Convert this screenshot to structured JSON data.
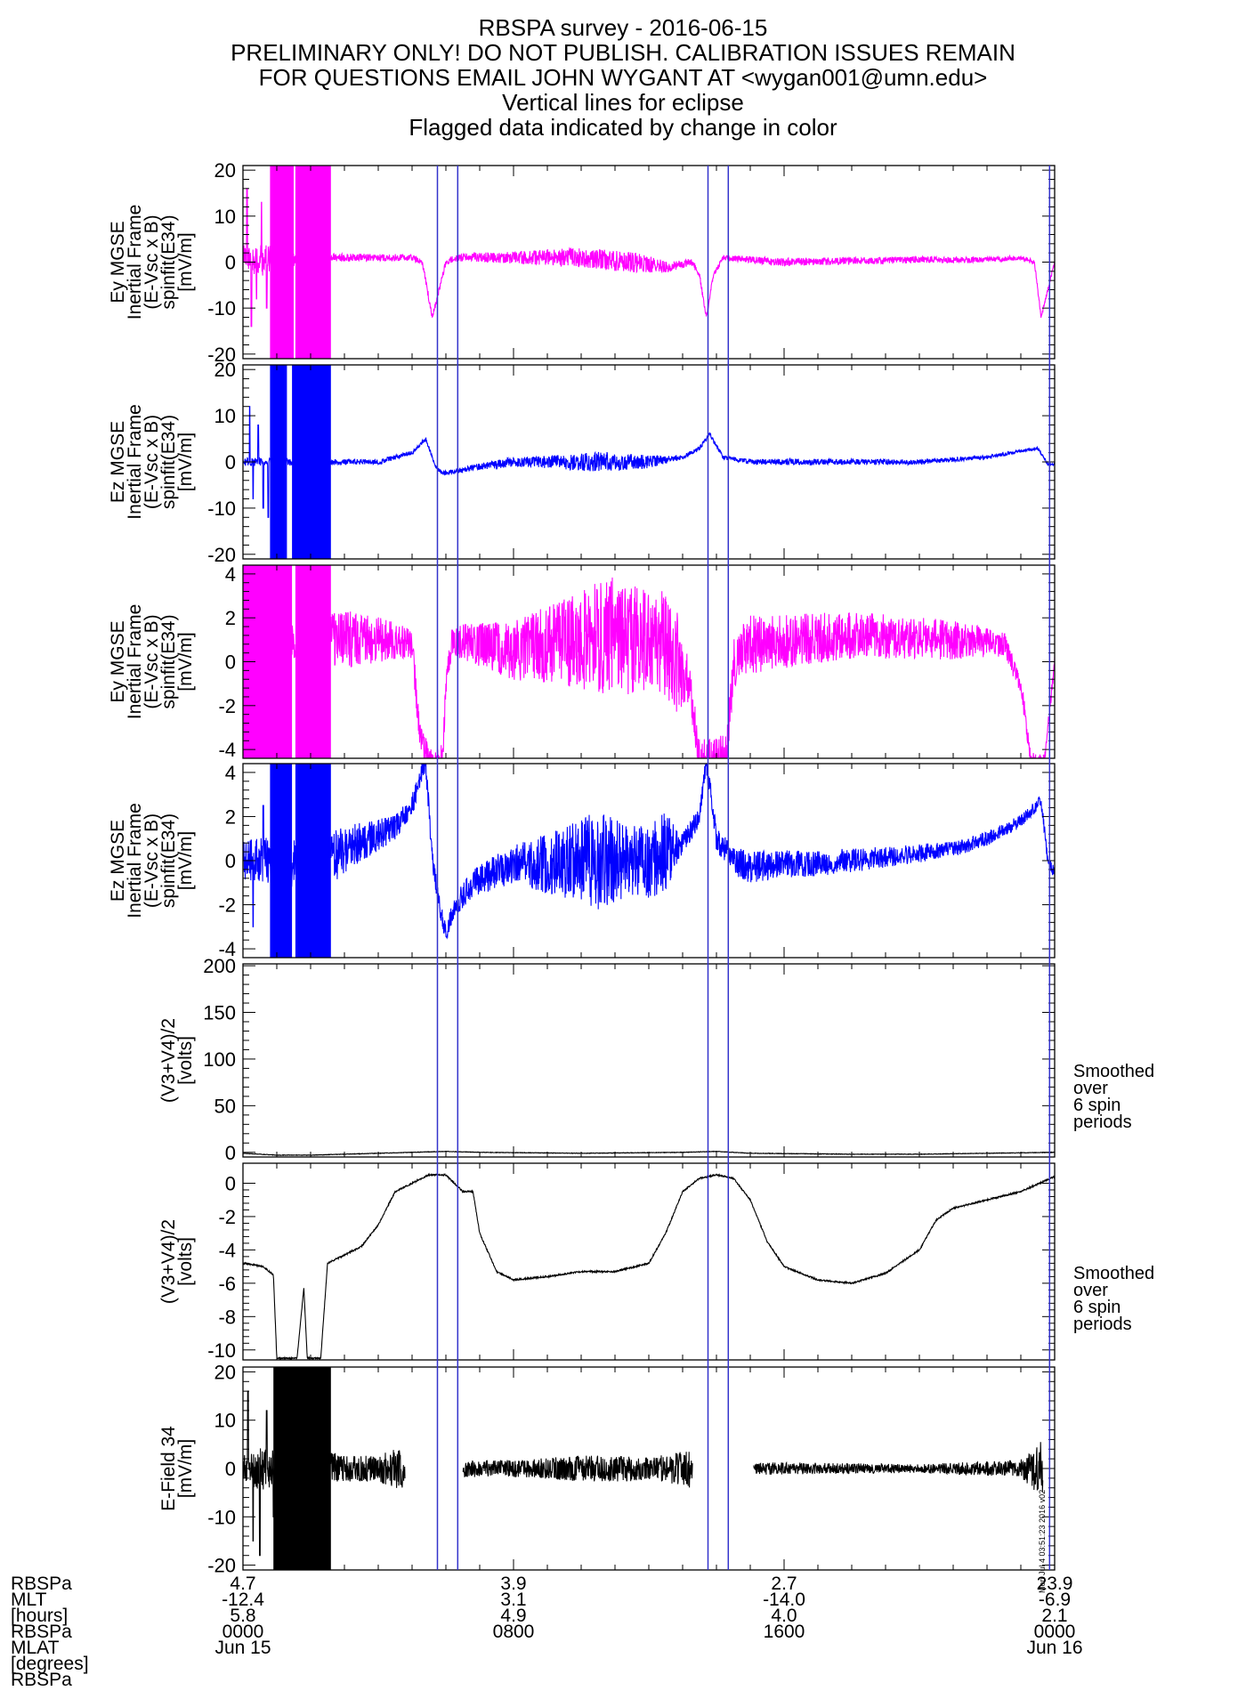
{
  "title_lines": [
    "RBSPA survey - 2016-06-15",
    "PRELIMINARY ONLY! DO NOT PUBLISH. CALIBRATION ISSUES REMAIN",
    "FOR QUESTIONS EMAIL JOHN WYGANT AT <wygan001@umn.edu>",
    "Vertical lines for eclipse",
    "Flagged data indicated by change in color"
  ],
  "colors": {
    "magenta": "#ff00ff",
    "blue": "#0000ff",
    "black": "#000000",
    "eclipse": "#3333cc"
  },
  "time_axis": {
    "start_hours": 0,
    "end_hours": 24,
    "major_ticks_hours": [
      0,
      8,
      16,
      24
    ],
    "minor_step_hours": 1
  },
  "eclipse_lines_hours": [
    5.75,
    6.35,
    13.75,
    14.35,
    23.85
  ],
  "side_labels": {
    "panel5": [
      "Smoothed",
      "over",
      "6 spin",
      "periods"
    ],
    "panel6": [
      "Smoothed",
      "over",
      "6 spin",
      "periods"
    ]
  },
  "stamp": "Mon Jul  4 03:51:23 2016 v02",
  "ephemeris": {
    "row_labels": [
      "RBSPa",
      "MLT",
      "[hours]",
      "RBSPa",
      "MLAT",
      "[degrees]",
      "RBSPa"
    ],
    "columns": [
      {
        "hour": 0,
        "lines": [
          "4.7",
          "-12.4",
          "5.8",
          "0000",
          "Jun 15"
        ]
      },
      {
        "hour": 8,
        "lines": [
          "3.9",
          "3.1",
          "4.9",
          "0800",
          ""
        ]
      },
      {
        "hour": 16,
        "lines": [
          "2.7",
          "-14.0",
          "4.0",
          "1600",
          ""
        ]
      },
      {
        "hour": 24,
        "lines": [
          "23.9",
          "-6.9",
          "2.1",
          "0000",
          "Jun 16"
        ]
      }
    ]
  },
  "chart_data": [
    {
      "type": "line",
      "ylabel_lines": [
        "Ey MGSE",
        "Inertial Frame",
        "(E-Vsc x B)",
        "spinfit(E34)",
        "[mV/m]"
      ],
      "ylim": [
        -21,
        21
      ],
      "yticks": [
        -20,
        -10,
        0,
        10,
        20
      ],
      "color_main": "#ff00ff",
      "flag_color": "#ff00ff",
      "baseline": [
        [
          0,
          1
        ],
        [
          0.3,
          0.5
        ],
        [
          2,
          0.5
        ],
        [
          2.3,
          1
        ],
        [
          5,
          1
        ],
        [
          5.3,
          0
        ],
        [
          5.6,
          -12
        ],
        [
          5.8,
          -6
        ],
        [
          6,
          0
        ],
        [
          6.3,
          1
        ],
        [
          8,
          1
        ],
        [
          10,
          1
        ],
        [
          11.5,
          0
        ],
        [
          12.5,
          -1
        ],
        [
          13.3,
          0
        ],
        [
          13.5,
          -3
        ],
        [
          13.7,
          -12
        ],
        [
          13.9,
          -3
        ],
        [
          14.2,
          1
        ],
        [
          16,
          0
        ],
        [
          20,
          0.5
        ],
        [
          22,
          0.5
        ],
        [
          23,
          1
        ],
        [
          23.4,
          0
        ],
        [
          23.6,
          -12
        ],
        [
          23.8,
          -6
        ],
        [
          24,
          0
        ]
      ],
      "noise": [
        [
          0,
          3
        ],
        [
          0.5,
          4
        ],
        [
          2,
          1
        ],
        [
          5,
          0.8
        ],
        [
          6,
          0.8
        ],
        [
          8,
          1.5
        ],
        [
          10,
          2.5
        ],
        [
          11.5,
          2.5
        ],
        [
          13,
          1
        ],
        [
          14,
          0.6
        ],
        [
          16,
          1
        ],
        [
          20,
          0.8
        ],
        [
          24,
          0.5
        ]
      ],
      "spikes": [
        [
          0.12,
          16
        ],
        [
          0.25,
          -14
        ],
        [
          0.4,
          -8
        ],
        [
          0.55,
          13
        ],
        [
          0.7,
          -10
        ],
        [
          0.85,
          8
        ]
      ],
      "flag_spans": [
        [
          0.8,
          1.5
        ],
        [
          1.55,
          2.6
        ]
      ],
      "flag_clip": true
    },
    {
      "type": "line",
      "ylabel_lines": [
        "Ez MGSE",
        "Inertial Frame",
        "(E-Vsc x B)",
        "spinfit(E34)",
        "[mV/m]"
      ],
      "ylim": [
        -21,
        21
      ],
      "yticks": [
        -20,
        -10,
        0,
        10,
        20
      ],
      "color_main": "#0000ff",
      "flag_color": "#0000ff",
      "baseline": [
        [
          0,
          0
        ],
        [
          2.5,
          0
        ],
        [
          4,
          0
        ],
        [
          5,
          2
        ],
        [
          5.4,
          5
        ],
        [
          5.7,
          -1
        ],
        [
          5.9,
          -2.5
        ],
        [
          7,
          -1
        ],
        [
          8,
          0
        ],
        [
          11,
          0
        ],
        [
          12,
          0
        ],
        [
          13,
          1
        ],
        [
          13.5,
          3
        ],
        [
          13.8,
          6
        ],
        [
          14.2,
          1
        ],
        [
          15,
          0
        ],
        [
          20,
          0
        ],
        [
          22,
          1
        ],
        [
          23.5,
          3
        ],
        [
          23.8,
          -0.5
        ],
        [
          24,
          -0.5
        ]
      ],
      "noise": [
        [
          0,
          1
        ],
        [
          2,
          0.8
        ],
        [
          5,
          0.5
        ],
        [
          6,
          0.5
        ],
        [
          9,
          1.5
        ],
        [
          10.5,
          2.5
        ],
        [
          11.5,
          2
        ],
        [
          13,
          0.5
        ],
        [
          14.5,
          0.5
        ],
        [
          16,
          0.8
        ],
        [
          20,
          0.6
        ],
        [
          24,
          0.3
        ]
      ],
      "spikes": [
        [
          0.2,
          12
        ],
        [
          0.3,
          -8
        ],
        [
          0.45,
          8
        ],
        [
          0.6,
          -10
        ],
        [
          0.75,
          -12
        ],
        [
          0.9,
          6
        ]
      ],
      "flag_spans": [
        [
          0.8,
          1.3
        ],
        [
          1.45,
          2.6
        ]
      ],
      "flag_clip": true
    },
    {
      "type": "line",
      "ylabel_lines": [
        "Ey MGSE",
        "Inertial Frame",
        "(E-Vsc x B)",
        "spinfit(E34)",
        "[mV/m]"
      ],
      "ylim": [
        -4.4,
        4.4
      ],
      "yticks": [
        -4,
        -2,
        0,
        2,
        4
      ],
      "color_main": "#ff00ff",
      "flag_color": "#ff00ff",
      "baseline": [
        [
          0,
          1
        ],
        [
          2.5,
          1
        ],
        [
          4,
          1
        ],
        [
          5,
          0.8
        ],
        [
          5.2,
          -3
        ],
        [
          5.5,
          -4.5
        ],
        [
          5.9,
          -4.5
        ],
        [
          6,
          -1
        ],
        [
          6.2,
          1
        ],
        [
          8,
          0.5
        ],
        [
          10,
          1
        ],
        [
          11,
          1.2
        ],
        [
          12.5,
          0.8
        ],
        [
          13.2,
          -1
        ],
        [
          13.5,
          -4.5
        ],
        [
          14.3,
          -4.5
        ],
        [
          14.5,
          0
        ],
        [
          15,
          0.8
        ],
        [
          18,
          1.2
        ],
        [
          21,
          1
        ],
        [
          22.5,
          0.8
        ],
        [
          23,
          -1
        ],
        [
          23.3,
          -4.5
        ],
        [
          23.7,
          -4.5
        ],
        [
          23.9,
          -1.5
        ],
        [
          24,
          0
        ]
      ],
      "noise": [
        [
          0,
          1.2
        ],
        [
          2,
          1
        ],
        [
          3,
          1.5
        ],
        [
          5,
          0.8
        ],
        [
          6.2,
          0.8
        ],
        [
          8,
          1.5
        ],
        [
          10,
          2.5
        ],
        [
          11,
          3.2
        ],
        [
          12,
          2.5
        ],
        [
          12.8,
          2.8
        ],
        [
          13.2,
          1
        ],
        [
          15,
          1.5
        ],
        [
          18,
          1.2
        ],
        [
          21,
          1
        ],
        [
          23,
          0.5
        ],
        [
          24,
          0.3
        ]
      ],
      "spikes": [
        [
          0.1,
          3
        ],
        [
          0.3,
          -2.5
        ],
        [
          0.5,
          2.8
        ]
      ],
      "flag_spans": [
        [
          0,
          1.45
        ],
        [
          1.55,
          2.6
        ]
      ],
      "flag_clip": true
    },
    {
      "type": "line",
      "ylabel_lines": [
        "Ez MGSE",
        "Inertial Frame",
        "(E-Vsc x B)",
        "spinfit(E34)",
        "[mV/m]"
      ],
      "ylim": [
        -4.4,
        4.4
      ],
      "yticks": [
        -4,
        -2,
        0,
        2,
        4
      ],
      "color_main": "#0000ff",
      "flag_color": "#0000ff",
      "baseline": [
        [
          0,
          0
        ],
        [
          2.5,
          0
        ],
        [
          3,
          0.5
        ],
        [
          4.5,
          1.5
        ],
        [
          5,
          2.5
        ],
        [
          5.4,
          4.5
        ],
        [
          5.6,
          0
        ],
        [
          5.8,
          -2
        ],
        [
          6,
          -3.2
        ],
        [
          6.3,
          -2
        ],
        [
          6.8,
          -1
        ],
        [
          7.5,
          -0.5
        ],
        [
          8,
          -0.2
        ],
        [
          10,
          0
        ],
        [
          11,
          0
        ],
        [
          12,
          0
        ],
        [
          13,
          0.8
        ],
        [
          13.5,
          2
        ],
        [
          13.7,
          4.5
        ],
        [
          14,
          1
        ],
        [
          14.5,
          0
        ],
        [
          15,
          -0.3
        ],
        [
          18,
          0
        ],
        [
          21,
          0.5
        ],
        [
          22,
          1
        ],
        [
          23,
          1.8
        ],
        [
          23.6,
          2.7
        ],
        [
          23.8,
          0
        ],
        [
          24,
          -0.6
        ]
      ],
      "noise": [
        [
          0,
          1
        ],
        [
          2,
          1.5
        ],
        [
          3,
          1.2
        ],
        [
          4.5,
          0.6
        ],
        [
          6,
          0.5
        ],
        [
          8,
          1
        ],
        [
          9.5,
          1.8
        ],
        [
          10.5,
          2.5
        ],
        [
          11.5,
          1.8
        ],
        [
          12.5,
          2
        ],
        [
          13,
          0.5
        ],
        [
          15,
          0.8
        ],
        [
          18,
          0.6
        ],
        [
          21,
          0.4
        ],
        [
          23.5,
          0.3
        ],
        [
          24,
          0.3
        ]
      ],
      "spikes": [
        [
          0.3,
          -3
        ],
        [
          0.6,
          2.5
        ]
      ],
      "flag_spans": [
        [
          0.8,
          1.45
        ],
        [
          1.55,
          2.6
        ]
      ],
      "flag_clip": true
    },
    {
      "type": "line",
      "ylabel_lines": [
        "(V3+V4)/2",
        "[volts]"
      ],
      "ylim": [
        -5,
        202
      ],
      "yticks": [
        0,
        50,
        100,
        150,
        200
      ],
      "color_main": "#000000",
      "baseline": [
        [
          0,
          -1
        ],
        [
          1,
          -3
        ],
        [
          2,
          -3
        ],
        [
          3,
          -2
        ],
        [
          5,
          0
        ],
        [
          6,
          1
        ],
        [
          7,
          0
        ],
        [
          10,
          -1
        ],
        [
          13,
          0
        ],
        [
          14,
          1
        ],
        [
          15,
          -1
        ],
        [
          18,
          -2
        ],
        [
          20,
          -2
        ],
        [
          24,
          0
        ]
      ],
      "noise": [
        [
          0,
          0.3
        ],
        [
          24,
          0.3
        ]
      ],
      "spikes": [],
      "flag_spans": [],
      "flag_clip": false
    },
    {
      "type": "line",
      "ylabel_lines": [
        "(V3+V4)/2",
        "[volts]"
      ],
      "ylim": [
        -10.6,
        1.2
      ],
      "yticks": [
        -10,
        -8,
        -6,
        -4,
        -2,
        0
      ],
      "color_main": "#000000",
      "baseline": [
        [
          0,
          -4.8
        ],
        [
          0.6,
          -5
        ],
        [
          0.9,
          -5.5
        ],
        [
          1,
          -10.5
        ],
        [
          1.6,
          -10.5
        ],
        [
          1.8,
          -6.3
        ],
        [
          1.9,
          -10.5
        ],
        [
          2.3,
          -10.5
        ],
        [
          2.5,
          -4.8
        ],
        [
          3,
          -4.3
        ],
        [
          3.5,
          -3.8
        ],
        [
          4,
          -2.5
        ],
        [
          4.5,
          -0.5
        ],
        [
          5,
          0
        ],
        [
          5.5,
          0.5
        ],
        [
          6,
          0.5
        ],
        [
          6.5,
          -0.5
        ],
        [
          6.8,
          -0.5
        ],
        [
          7,
          -3
        ],
        [
          7.5,
          -5.3
        ],
        [
          8,
          -5.8
        ],
        [
          9,
          -5.6
        ],
        [
          10,
          -5.3
        ],
        [
          11,
          -5.3
        ],
        [
          12,
          -4.8
        ],
        [
          12.5,
          -3
        ],
        [
          13,
          -0.5
        ],
        [
          13.5,
          0.3
        ],
        [
          14,
          0.5
        ],
        [
          14.5,
          0.3
        ],
        [
          15,
          -1
        ],
        [
          15.5,
          -3.5
        ],
        [
          16,
          -5
        ],
        [
          17,
          -5.8
        ],
        [
          18,
          -6
        ],
        [
          19,
          -5.4
        ],
        [
          20,
          -4
        ],
        [
          20.5,
          -2.2
        ],
        [
          21,
          -1.5
        ],
        [
          22,
          -1
        ],
        [
          23,
          -0.5
        ],
        [
          24,
          0.4
        ]
      ],
      "noise": [
        [
          0,
          0.05
        ],
        [
          24,
          0.05
        ]
      ],
      "spikes": [],
      "flag_spans": [],
      "flag_clip": false
    },
    {
      "type": "line",
      "ylabel_lines": [
        "E-Field 34",
        "[mV/m]"
      ],
      "ylim": [
        -21,
        21
      ],
      "yticks": [
        -20,
        -10,
        0,
        10,
        20
      ],
      "color_main": "#000000",
      "flag_color": "#000000",
      "baseline": [
        [
          0,
          0
        ],
        [
          24,
          0
        ]
      ],
      "noise": [
        [
          0,
          3
        ],
        [
          0.5,
          5
        ],
        [
          1,
          4
        ],
        [
          2.6,
          4
        ],
        [
          3,
          3
        ],
        [
          4,
          3
        ],
        [
          4.6,
          5
        ],
        [
          4.8,
          4
        ],
        [
          6.6,
          2
        ],
        [
          8,
          2
        ],
        [
          10,
          3
        ],
        [
          11.5,
          3
        ],
        [
          12,
          2.5
        ],
        [
          13,
          4
        ],
        [
          13.3,
          5
        ],
        [
          15,
          1.5
        ],
        [
          20,
          1
        ],
        [
          23,
          2
        ],
        [
          23.6,
          7
        ],
        [
          23.8,
          0
        ]
      ],
      "spikes": [
        [
          0.15,
          16
        ],
        [
          0.3,
          -15
        ],
        [
          0.5,
          -18
        ],
        [
          0.7,
          12
        ],
        [
          0.9,
          -10
        ]
      ],
      "flag_spans": [
        [
          0.9,
          2.6
        ]
      ],
      "flag_clip": true,
      "gaps": [
        [
          4.8,
          6.5
        ],
        [
          13.3,
          15.1
        ],
        [
          23.65,
          24
        ]
      ]
    }
  ]
}
